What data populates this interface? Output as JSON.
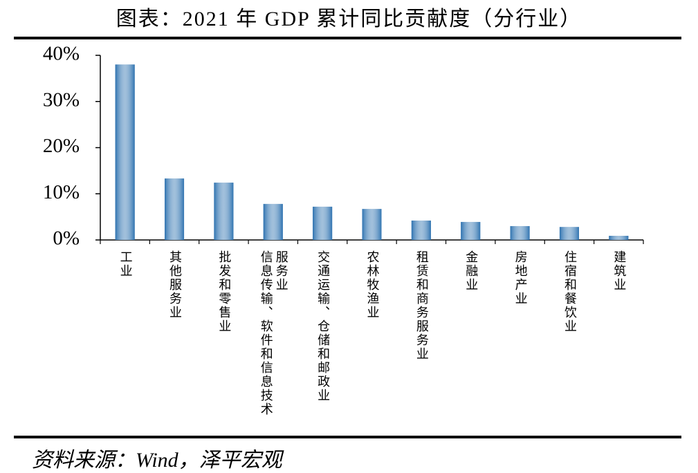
{
  "chart_data": {
    "type": "bar",
    "title": "图表：2021 年 GDP 累计同比贡献度（分行业）",
    "categories": [
      "工业",
      "其他服务业",
      "批发和零售业",
      "信息传输、软件和信息技术服务业",
      "交通运输、仓储和邮政业",
      "农林牧渔业",
      "租赁和商务服务业",
      "金融业",
      "房地产业",
      "住宿和餐饮业",
      "建筑业"
    ],
    "values": [
      38,
      13.3,
      12.4,
      7.8,
      7.2,
      6.7,
      4.2,
      3.9,
      3.0,
      2.8,
      0.9
    ],
    "color": "#2f73b0",
    "ylim": [
      0,
      40
    ],
    "yticks": [
      {
        "value": 0,
        "label": "0%"
      },
      {
        "value": 10,
        "label": "10%"
      },
      {
        "value": 20,
        "label": "20%"
      },
      {
        "value": 30,
        "label": "30%"
      },
      {
        "value": 40,
        "label": "40%"
      }
    ],
    "grid": false,
    "source": "资料来源：Wind，泽平宏观"
  }
}
